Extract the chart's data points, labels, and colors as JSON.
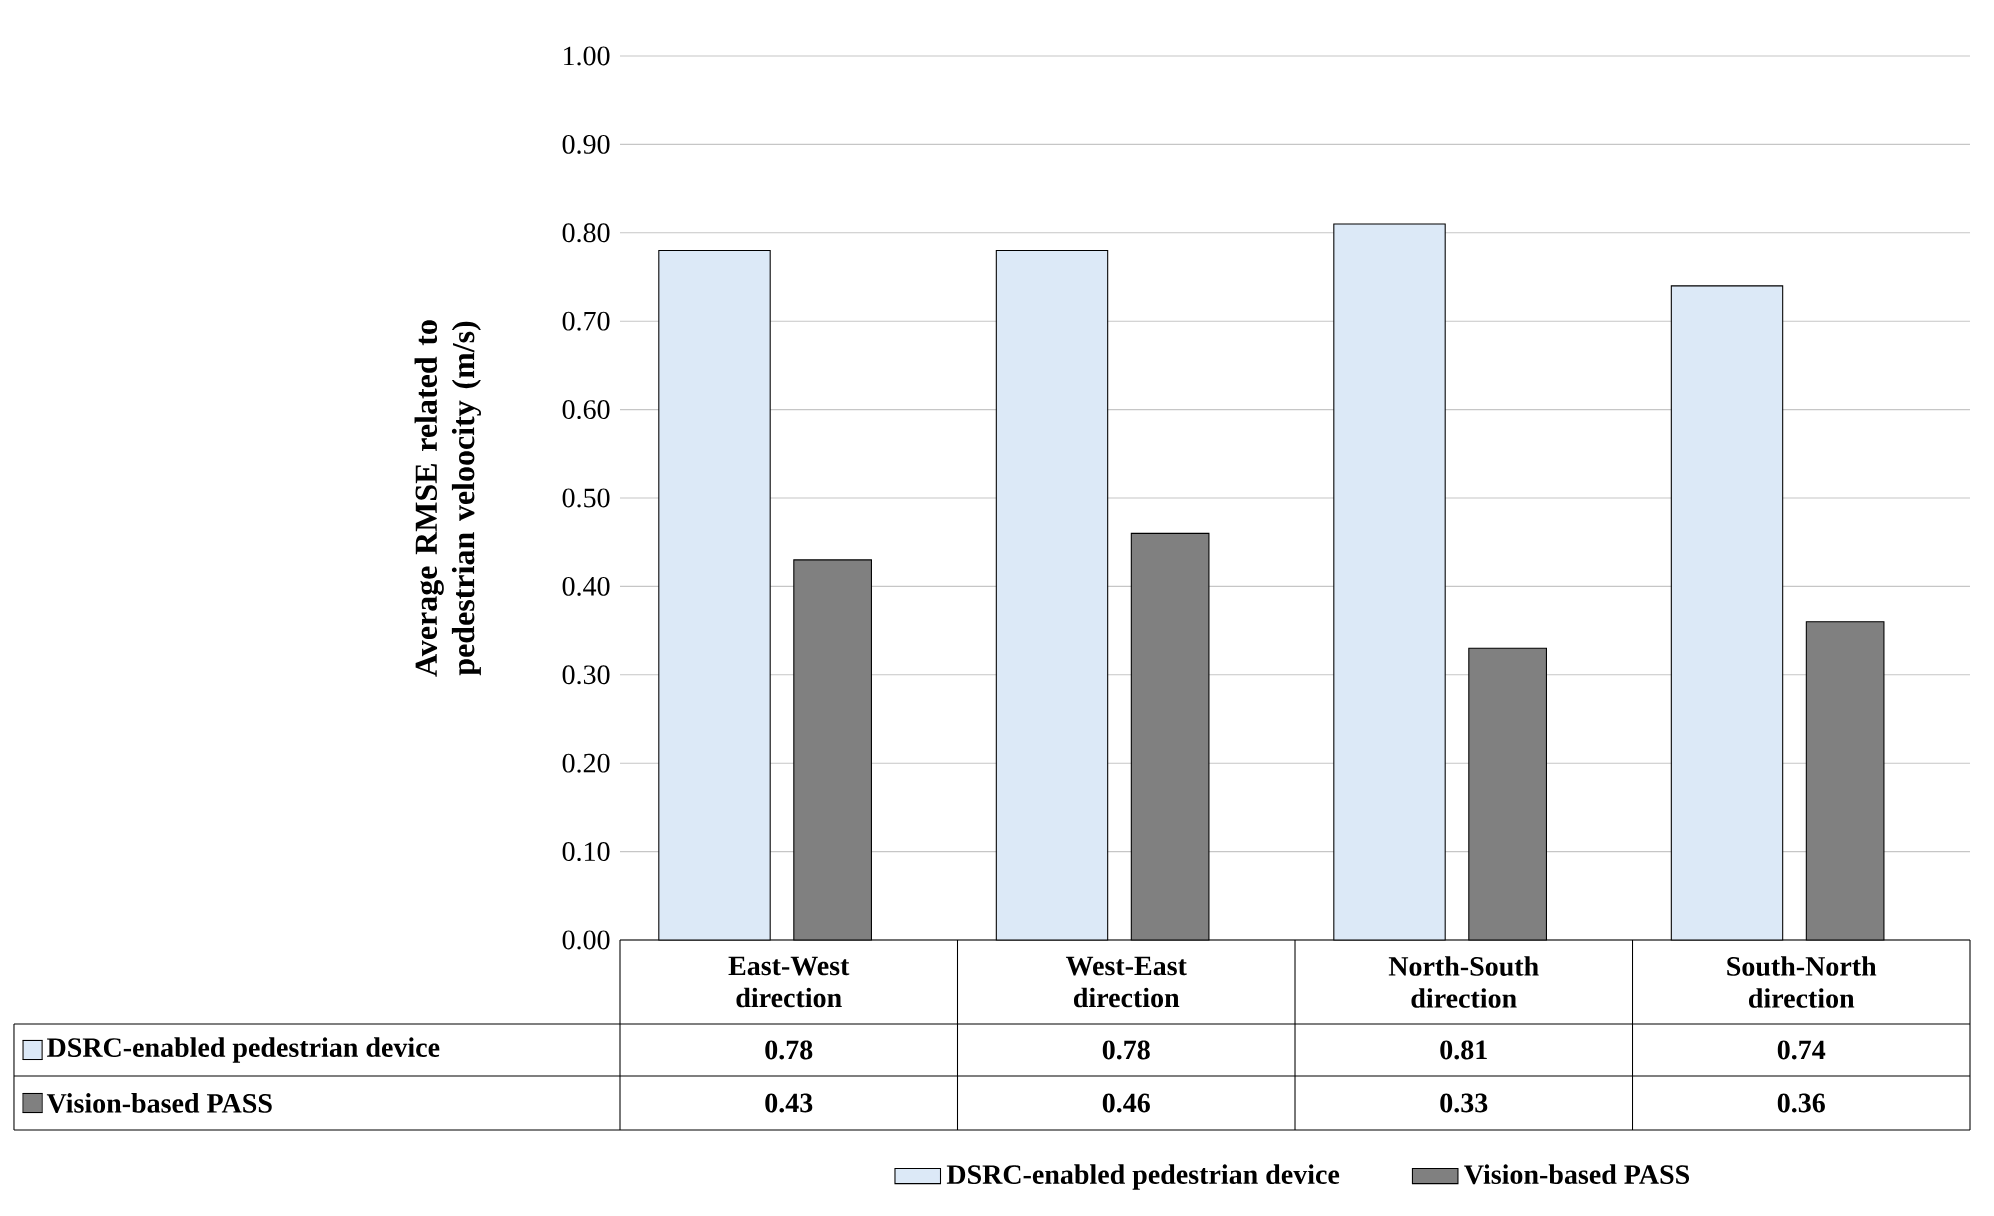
{
  "chart_data": {
    "type": "bar",
    "ylabel": "Average  RMSE related to pedestrian veloocity (m/s)",
    "categories": [
      "East-West direction",
      "West-East direction",
      "North-South direction",
      "South-North direction"
    ],
    "series": [
      {
        "name": "DSRC-enabled pedestrian device",
        "color": "#dce9f7",
        "values": [
          0.78,
          0.78,
          0.81,
          0.74
        ]
      },
      {
        "name": "Vision-based PASS",
        "color": "#808080",
        "values": [
          0.43,
          0.46,
          0.33,
          0.36
        ]
      }
    ],
    "ylim": [
      0,
      1
    ],
    "yticks": [
      {
        "value": 0,
        "label": "0.00"
      },
      {
        "value": 0.1,
        "label": "0.10"
      },
      {
        "value": 0.2,
        "label": "0.20"
      },
      {
        "value": 0.3,
        "label": "0.30"
      },
      {
        "value": 0.4,
        "label": "0.40"
      },
      {
        "value": 0.5,
        "label": "0.50"
      },
      {
        "value": 0.6,
        "label": "0.60"
      },
      {
        "value": 0.7,
        "label": "0.70"
      },
      {
        "value": 0.8,
        "label": "0.80"
      },
      {
        "value": 0.9,
        "label": "0.90"
      },
      {
        "value": 1,
        "label": "1.00"
      }
    ],
    "grid": "y",
    "legend": "bottom",
    "data_labels": true
  }
}
